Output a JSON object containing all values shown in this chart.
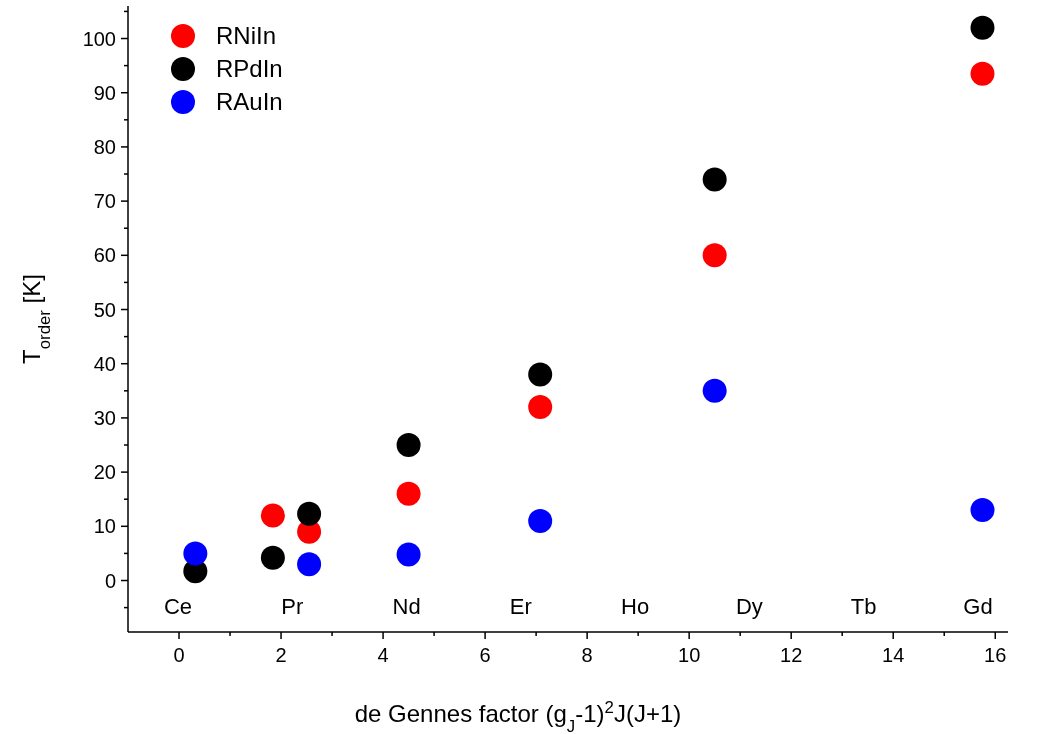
{
  "chart_data": {
    "type": "scatter",
    "xlabel": "de Gennes factor (g$_{J}$-1)$^{2}$J(J+1)",
    "ylabel": "T$_{order}$ [K]",
    "xlim": [
      -1,
      16.25
    ],
    "ylim": [
      -9.5,
      106
    ],
    "xticks": [
      0,
      {
        "value": 1,
        "label": null
      },
      2,
      {
        "value": 3,
        "label": null
      },
      4,
      {
        "value": 5,
        "label": null
      },
      6,
      {
        "value": 7,
        "label": null
      },
      8,
      {
        "value": 9,
        "label": null
      },
      10,
      {
        "value": 11,
        "label": null
      },
      12,
      {
        "value": 13,
        "label": null
      },
      14,
      {
        "value": 15,
        "label": null
      },
      16
    ],
    "yticks": [
      {
        "value": -5,
        "label": null
      },
      0,
      {
        "value": 5,
        "label": null
      },
      10,
      {
        "value": 15,
        "label": null
      },
      20,
      {
        "value": 25,
        "label": null
      },
      30,
      {
        "value": 35,
        "label": null
      },
      40,
      {
        "value": 45,
        "label": null
      },
      50,
      {
        "value": 55,
        "label": null
      },
      60,
      {
        "value": 65,
        "label": null
      },
      70,
      {
        "value": 75,
        "label": null
      },
      80,
      {
        "value": 85,
        "label": null
      },
      90,
      {
        "value": 95,
        "label": null
      },
      100,
      {
        "value": 105,
        "label": null
      }
    ],
    "grid": false,
    "legend": "top left",
    "marker": "circle",
    "series": [
      {
        "name": "RNiIn",
        "color": "#ff0000",
        "x": [
          1.84,
          2.55,
          4.5,
          7.08,
          10.5,
          15.75
        ],
        "values": [
          12,
          9,
          16,
          32,
          60,
          93.5
        ]
      },
      {
        "name": "RPdIn",
        "color": "#000000",
        "x": [
          0.32,
          1.84,
          2.55,
          4.5,
          7.08,
          10.5,
          15.75
        ],
        "values": [
          1.7,
          4.2,
          12.3,
          25,
          38,
          74,
          102
        ]
      },
      {
        "name": "RAuIn",
        "color": "#0000ff",
        "x": [
          0.32,
          2.55,
          4.5,
          7.08,
          10.5,
          15.75
        ],
        "values": [
          5,
          3,
          4.8,
          11,
          35,
          13
        ]
      }
    ],
    "annotations": [
      "Ce",
      "Pr",
      "Nd",
      "Er",
      "Ho",
      "Dy",
      "Tb",
      "Gd"
    ]
  }
}
